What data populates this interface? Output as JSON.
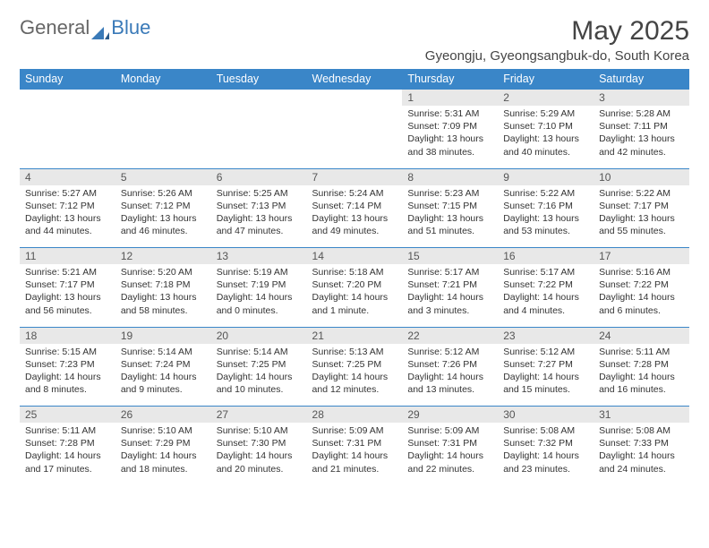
{
  "brand": {
    "part1": "General",
    "part2": "Blue"
  },
  "title": "May 2025",
  "location": "Gyeongju, Gyeongsangbuk-do, South Korea",
  "colors": {
    "header_bg": "#3a86c8",
    "header_text": "#ffffff",
    "daynum_bg": "#e8e8e8",
    "border": "#3a86c8",
    "text": "#333333",
    "brand_gray": "#666666",
    "brand_blue": "#3a7ab8"
  },
  "day_headers": [
    "Sunday",
    "Monday",
    "Tuesday",
    "Wednesday",
    "Thursday",
    "Friday",
    "Saturday"
  ],
  "weeks": [
    [
      null,
      null,
      null,
      null,
      {
        "n": "1",
        "sr": "5:31 AM",
        "ss": "7:09 PM",
        "dl": "13 hours and 38 minutes."
      },
      {
        "n": "2",
        "sr": "5:29 AM",
        "ss": "7:10 PM",
        "dl": "13 hours and 40 minutes."
      },
      {
        "n": "3",
        "sr": "5:28 AM",
        "ss": "7:11 PM",
        "dl": "13 hours and 42 minutes."
      }
    ],
    [
      {
        "n": "4",
        "sr": "5:27 AM",
        "ss": "7:12 PM",
        "dl": "13 hours and 44 minutes."
      },
      {
        "n": "5",
        "sr": "5:26 AM",
        "ss": "7:12 PM",
        "dl": "13 hours and 46 minutes."
      },
      {
        "n": "6",
        "sr": "5:25 AM",
        "ss": "7:13 PM",
        "dl": "13 hours and 47 minutes."
      },
      {
        "n": "7",
        "sr": "5:24 AM",
        "ss": "7:14 PM",
        "dl": "13 hours and 49 minutes."
      },
      {
        "n": "8",
        "sr": "5:23 AM",
        "ss": "7:15 PM",
        "dl": "13 hours and 51 minutes."
      },
      {
        "n": "9",
        "sr": "5:22 AM",
        "ss": "7:16 PM",
        "dl": "13 hours and 53 minutes."
      },
      {
        "n": "10",
        "sr": "5:22 AM",
        "ss": "7:17 PM",
        "dl": "13 hours and 55 minutes."
      }
    ],
    [
      {
        "n": "11",
        "sr": "5:21 AM",
        "ss": "7:17 PM",
        "dl": "13 hours and 56 minutes."
      },
      {
        "n": "12",
        "sr": "5:20 AM",
        "ss": "7:18 PM",
        "dl": "13 hours and 58 minutes."
      },
      {
        "n": "13",
        "sr": "5:19 AM",
        "ss": "7:19 PM",
        "dl": "14 hours and 0 minutes."
      },
      {
        "n": "14",
        "sr": "5:18 AM",
        "ss": "7:20 PM",
        "dl": "14 hours and 1 minute."
      },
      {
        "n": "15",
        "sr": "5:17 AM",
        "ss": "7:21 PM",
        "dl": "14 hours and 3 minutes."
      },
      {
        "n": "16",
        "sr": "5:17 AM",
        "ss": "7:22 PM",
        "dl": "14 hours and 4 minutes."
      },
      {
        "n": "17",
        "sr": "5:16 AM",
        "ss": "7:22 PM",
        "dl": "14 hours and 6 minutes."
      }
    ],
    [
      {
        "n": "18",
        "sr": "5:15 AM",
        "ss": "7:23 PM",
        "dl": "14 hours and 8 minutes."
      },
      {
        "n": "19",
        "sr": "5:14 AM",
        "ss": "7:24 PM",
        "dl": "14 hours and 9 minutes."
      },
      {
        "n": "20",
        "sr": "5:14 AM",
        "ss": "7:25 PM",
        "dl": "14 hours and 10 minutes."
      },
      {
        "n": "21",
        "sr": "5:13 AM",
        "ss": "7:25 PM",
        "dl": "14 hours and 12 minutes."
      },
      {
        "n": "22",
        "sr": "5:12 AM",
        "ss": "7:26 PM",
        "dl": "14 hours and 13 minutes."
      },
      {
        "n": "23",
        "sr": "5:12 AM",
        "ss": "7:27 PM",
        "dl": "14 hours and 15 minutes."
      },
      {
        "n": "24",
        "sr": "5:11 AM",
        "ss": "7:28 PM",
        "dl": "14 hours and 16 minutes."
      }
    ],
    [
      {
        "n": "25",
        "sr": "5:11 AM",
        "ss": "7:28 PM",
        "dl": "14 hours and 17 minutes."
      },
      {
        "n": "26",
        "sr": "5:10 AM",
        "ss": "7:29 PM",
        "dl": "14 hours and 18 minutes."
      },
      {
        "n": "27",
        "sr": "5:10 AM",
        "ss": "7:30 PM",
        "dl": "14 hours and 20 minutes."
      },
      {
        "n": "28",
        "sr": "5:09 AM",
        "ss": "7:31 PM",
        "dl": "14 hours and 21 minutes."
      },
      {
        "n": "29",
        "sr": "5:09 AM",
        "ss": "7:31 PM",
        "dl": "14 hours and 22 minutes."
      },
      {
        "n": "30",
        "sr": "5:08 AM",
        "ss": "7:32 PM",
        "dl": "14 hours and 23 minutes."
      },
      {
        "n": "31",
        "sr": "5:08 AM",
        "ss": "7:33 PM",
        "dl": "14 hours and 24 minutes."
      }
    ]
  ],
  "labels": {
    "sunrise": "Sunrise: ",
    "sunset": "Sunset: ",
    "daylight": "Daylight: "
  }
}
